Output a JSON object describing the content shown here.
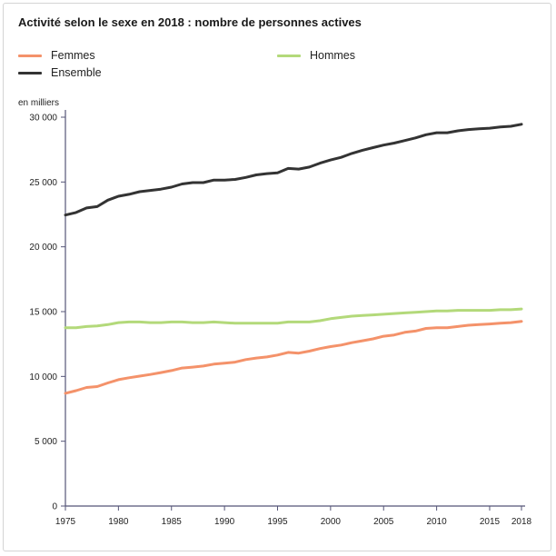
{
  "chart_data": {
    "type": "line",
    "title": "Activité selon le sexe en 2018 : nombre de personnes actives",
    "unit_label": "en milliers",
    "xlabel": "",
    "ylabel": "",
    "ylim": [
      0,
      30000
    ],
    "xlim": [
      1975,
      2018
    ],
    "y_ticks": [
      {
        "value": 0,
        "label": "0"
      },
      {
        "value": 5000,
        "label": "5 000"
      },
      {
        "value": 10000,
        "label": "10 000"
      },
      {
        "value": 15000,
        "label": "15 000"
      },
      {
        "value": 20000,
        "label": "20 000"
      },
      {
        "value": 25000,
        "label": "25 000"
      },
      {
        "value": 30000,
        "label": "30 000"
      }
    ],
    "x_ticks": [
      {
        "value": 1975,
        "label": "1975"
      },
      {
        "value": 1980,
        "label": "1980"
      },
      {
        "value": 1985,
        "label": "1985"
      },
      {
        "value": 1990,
        "label": "1990"
      },
      {
        "value": 1995,
        "label": "1995"
      },
      {
        "value": 2000,
        "label": "2000"
      },
      {
        "value": 2005,
        "label": "2005"
      },
      {
        "value": 2010,
        "label": "2010"
      },
      {
        "value": 2015,
        "label": "2015"
      },
      {
        "value": 2018,
        "label": "2018"
      }
    ],
    "grid": false,
    "legend_position": "top-left",
    "x": [
      1975,
      1976,
      1977,
      1978,
      1979,
      1980,
      1981,
      1982,
      1983,
      1984,
      1985,
      1986,
      1987,
      1988,
      1989,
      1990,
      1991,
      1992,
      1993,
      1994,
      1995,
      1996,
      1997,
      1998,
      1999,
      2000,
      2001,
      2002,
      2003,
      2004,
      2005,
      2006,
      2007,
      2008,
      2009,
      2010,
      2011,
      2012,
      2013,
      2014,
      2015,
      2016,
      2017,
      2018
    ],
    "series": [
      {
        "name": "Femmes",
        "color": "#f4926a",
        "values": [
          8700,
          8900,
          9150,
          9220,
          9500,
          9750,
          9900,
          10020,
          10150,
          10300,
          10450,
          10650,
          10720,
          10800,
          10950,
          11020,
          11100,
          11300,
          11420,
          11500,
          11650,
          11850,
          11800,
          11950,
          12150,
          12300,
          12420,
          12600,
          12750,
          12900,
          13100,
          13200,
          13400,
          13500,
          13700,
          13750,
          13750,
          13850,
          13950,
          14000,
          14050,
          14100,
          14150,
          14250
        ]
      },
      {
        "name": "Hommes",
        "color": "#b3d97a",
        "values": [
          13750,
          13750,
          13850,
          13900,
          14000,
          14150,
          14200,
          14200,
          14150,
          14150,
          14200,
          14200,
          14150,
          14150,
          14200,
          14150,
          14100,
          14100,
          14100,
          14100,
          14100,
          14200,
          14200,
          14200,
          14300,
          14450,
          14550,
          14650,
          14700,
          14750,
          14800,
          14850,
          14900,
          14950,
          15000,
          15050,
          15050,
          15100,
          15100,
          15100,
          15100,
          15150,
          15150,
          15200
        ]
      },
      {
        "name": "Ensemble",
        "color": "#333333",
        "values": [
          22450,
          22650,
          23000,
          23100,
          23600,
          23900,
          24050,
          24250,
          24350,
          24450,
          24600,
          24850,
          24950,
          24950,
          25150,
          25150,
          25200,
          25350,
          25550,
          25650,
          25700,
          26050,
          26000,
          26150,
          26450,
          26700,
          26900,
          27200,
          27450,
          27650,
          27850,
          28000,
          28200,
          28400,
          28650,
          28800,
          28800,
          28950,
          29050,
          29100,
          29150,
          29250,
          29300,
          29450
        ]
      }
    ]
  }
}
